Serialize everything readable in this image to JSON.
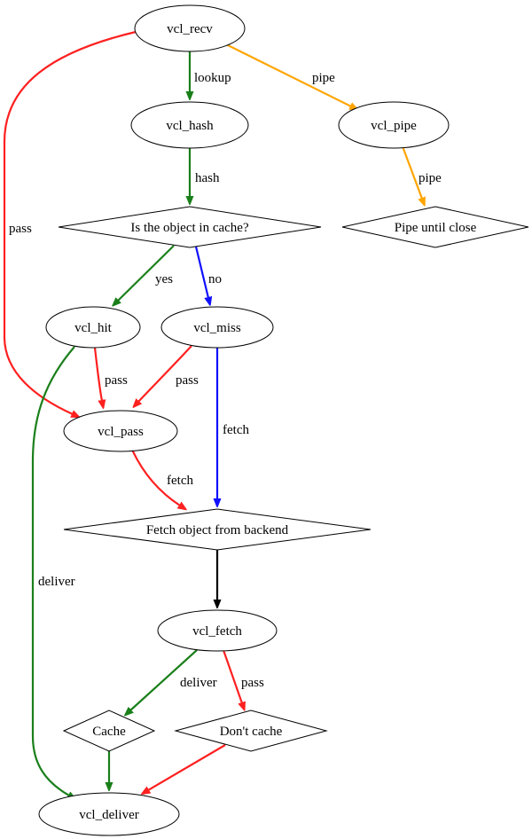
{
  "diagram": {
    "nodes": [
      {
        "id": "recv",
        "label": "vcl_recv",
        "shape": "ellipse"
      },
      {
        "id": "hash",
        "label": "vcl_hash",
        "shape": "ellipse"
      },
      {
        "id": "pipe",
        "label": "vcl_pipe",
        "shape": "ellipse"
      },
      {
        "id": "incache",
        "label": "Is the object in cache?",
        "shape": "diamond"
      },
      {
        "id": "pipeclose",
        "label": "Pipe until close",
        "shape": "diamond"
      },
      {
        "id": "hit",
        "label": "vcl_hit",
        "shape": "ellipse"
      },
      {
        "id": "miss",
        "label": "vcl_miss",
        "shape": "ellipse"
      },
      {
        "id": "pass",
        "label": "vcl_pass",
        "shape": "ellipse"
      },
      {
        "id": "fetchobj",
        "label": "Fetch object from backend",
        "shape": "diamond"
      },
      {
        "id": "fetch",
        "label": "vcl_fetch",
        "shape": "ellipse"
      },
      {
        "id": "cache",
        "label": "Cache",
        "shape": "diamond"
      },
      {
        "id": "dontcache",
        "label": "Don't cache",
        "shape": "diamond"
      },
      {
        "id": "deliver",
        "label": "vcl_deliver",
        "shape": "ellipse"
      }
    ],
    "edges": [
      {
        "from": "recv",
        "to": "hash",
        "label": "lookup",
        "color": "#1a7f1a"
      },
      {
        "from": "recv",
        "to": "pipe",
        "label": "pipe",
        "color": "#ffa500"
      },
      {
        "from": "recv",
        "to": "pass",
        "label": "pass",
        "color": "#ff2020"
      },
      {
        "from": "hash",
        "to": "incache",
        "label": "hash",
        "color": "#1a7f1a"
      },
      {
        "from": "pipe",
        "to": "pipeclose",
        "label": "pipe",
        "color": "#ffa500"
      },
      {
        "from": "incache",
        "to": "hit",
        "label": "yes",
        "color": "#1a7f1a"
      },
      {
        "from": "incache",
        "to": "miss",
        "label": "no",
        "color": "#1010ff"
      },
      {
        "from": "hit",
        "to": "pass",
        "label": "pass",
        "color": "#ff2020"
      },
      {
        "from": "miss",
        "to": "pass",
        "label": "pass",
        "color": "#ff2020"
      },
      {
        "from": "hit",
        "to": "deliver",
        "label": "deliver",
        "color": "#1a7f1a"
      },
      {
        "from": "miss",
        "to": "fetchobj",
        "label": "fetch",
        "color": "#1010ff"
      },
      {
        "from": "pass",
        "to": "fetchobj",
        "label": "fetch",
        "color": "#ff2020"
      },
      {
        "from": "fetchobj",
        "to": "fetch",
        "label": "",
        "color": "#000000"
      },
      {
        "from": "fetch",
        "to": "cache",
        "label": "deliver",
        "color": "#1a7f1a"
      },
      {
        "from": "fetch",
        "to": "dontcache",
        "label": "pass",
        "color": "#ff2020"
      },
      {
        "from": "cache",
        "to": "deliver",
        "label": "",
        "color": "#1a7f1a"
      },
      {
        "from": "dontcache",
        "to": "deliver",
        "label": "",
        "color": "#ff2020"
      }
    ]
  }
}
